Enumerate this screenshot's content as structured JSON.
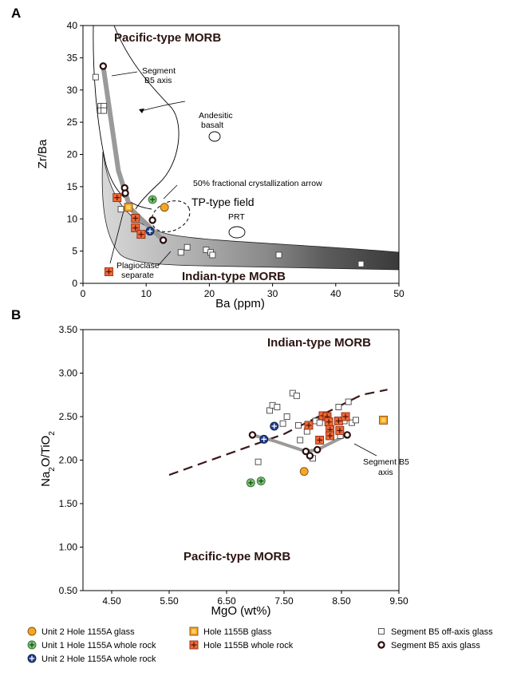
{
  "colors": {
    "segment_axis_line": "#9a9a9a",
    "fc_orange": "#f5a623",
    "fc_green": "#7cc576",
    "fc_blue": "#1f3f8f",
    "fc_red": "#ee6a37",
    "trend_dash": "#3a1a1a"
  },
  "legend": {
    "items": [
      {
        "symbol": "orange-circle",
        "label": "Unit 2 Hole 1155A glass"
      },
      {
        "symbol": "green-plus-circle",
        "label": "Unit 1 Hole 1155A whole rock"
      },
      {
        "symbol": "blue-plus-circle",
        "label": "Unit 2 Hole 1155A whole rock"
      },
      {
        "symbol": "orange-square",
        "label": "Hole 1155B glass"
      },
      {
        "symbol": "red-plus-square",
        "label": "Hole 1155B whole rock"
      },
      {
        "symbol": "open-square",
        "label": "Segment B5 off-axis glass"
      },
      {
        "symbol": "open-circle-thick",
        "label": "Segment B5 axis glass"
      }
    ]
  },
  "chart_data": [
    {
      "panel": "A",
      "type": "scatter",
      "xlabel": "Ba (ppm)",
      "ylabel": "Zr/Ba",
      "xlim": [
        0,
        50
      ],
      "ylim": [
        0,
        40
      ],
      "xticks": [
        "0",
        "10",
        "20",
        "30",
        "40",
        "50"
      ],
      "yticks": [
        "0",
        "5",
        "10",
        "15",
        "20",
        "25",
        "30",
        "35",
        "40"
      ],
      "region_labels": {
        "pacific": "Pacific-type MORB",
        "indian": "Indian-type MORB",
        "tp_field": "TP-type field",
        "prt": "PRT",
        "andesitic": [
          "Andesitic",
          "basalt"
        ],
        "fc_arrow": "50% fractional crystallization arrow",
        "segment_axis": [
          "Segment",
          "B5 axis"
        ],
        "plagioclase": [
          "Plagioclase",
          "separate"
        ]
      },
      "series": [
        {
          "name": "Segment B5 off-axis glass",
          "marker": "open-square",
          "points": [
            [
              2,
              32
            ],
            [
              2.8,
              27.5
            ],
            [
              3.3,
              27.5
            ],
            [
              2.8,
              26.8
            ],
            [
              3.3,
              26.8
            ],
            [
              6,
              11.5
            ],
            [
              15.5,
              4.8
            ],
            [
              16.5,
              5.6
            ],
            [
              19.5,
              5.2
            ],
            [
              20.2,
              4.8
            ],
            [
              20.5,
              4.4
            ],
            [
              31,
              4.4
            ],
            [
              44,
              3
            ]
          ]
        },
        {
          "name": "Segment B5 axis glass",
          "marker": "open-circle-thick",
          "points": [
            [
              3.2,
              33.7
            ],
            [
              6.6,
              14.8
            ],
            [
              6.7,
              14
            ],
            [
              11,
              9.8
            ],
            [
              12.7,
              6.7
            ]
          ]
        },
        {
          "name": "Unit 2 Hole 1155A glass",
          "marker": "orange-circle",
          "points": [
            [
              12.9,
              11.8
            ]
          ]
        },
        {
          "name": "Unit 1 Hole 1155A whole rock",
          "marker": "green-plus-circle",
          "points": [
            [
              11,
              13
            ]
          ]
        },
        {
          "name": "Unit 2 Hole 1155A whole rock",
          "marker": "blue-plus-circle",
          "points": [
            [
              10.6,
              8.1
            ]
          ]
        },
        {
          "name": "Hole 1155B glass",
          "marker": "orange-square",
          "points": [
            [
              7.2,
              11.8
            ]
          ]
        },
        {
          "name": "Hole 1155B whole rock",
          "marker": "red-plus-square",
          "points": [
            [
              5.4,
              13.3
            ],
            [
              8.3,
              10.1
            ],
            [
              8.3,
              8.6
            ],
            [
              9.2,
              7.6
            ],
            [
              4.1,
              1.8
            ]
          ]
        }
      ],
      "segment_axis_trend": [
        [
          3.2,
          33.7
        ],
        [
          5.6,
          17.5
        ],
        [
          7.5,
          11.6
        ],
        [
          12.7,
          6.7
        ]
      ]
    },
    {
      "panel": "B",
      "type": "scatter",
      "xlabel": "MgO (wt%)",
      "ylabel": "Na2O/TiO2",
      "xlim": [
        4.0,
        9.5
      ],
      "ylim": [
        0.5,
        3.5
      ],
      "xticks": [
        "4.50",
        "5.50",
        "6.50",
        "7.50",
        "8.50",
        "9.50"
      ],
      "yticks": [
        "0.50",
        "1.00",
        "1.50",
        "2.00",
        "2.50",
        "3.00",
        "3.50"
      ],
      "region_labels": {
        "indian": "Indian-type MORB",
        "pacific": "Pacific-type MORB",
        "segment_axis": [
          "Segment B5",
          "axis"
        ]
      },
      "series": [
        {
          "name": "Segment B5 off-axis glass",
          "marker": "open-square",
          "points": [
            [
              7.05,
              1.98
            ],
            [
              7.25,
              2.57
            ],
            [
              7.3,
              2.63
            ],
            [
              7.38,
              2.61
            ],
            [
              7.48,
              2.42
            ],
            [
              7.55,
              2.5
            ],
            [
              7.65,
              2.77
            ],
            [
              7.72,
              2.74
            ],
            [
              7.75,
              2.4
            ],
            [
              7.78,
              2.23
            ],
            [
              7.9,
              2.33
            ],
            [
              8.0,
              2.02
            ],
            [
              8.05,
              2.45
            ],
            [
              8.12,
              2.43
            ],
            [
              8.25,
              2.5
            ],
            [
              8.45,
              2.61
            ],
            [
              8.48,
              2.28
            ],
            [
              8.55,
              2.45
            ],
            [
              8.62,
              2.67
            ],
            [
              8.68,
              2.43
            ],
            [
              8.75,
              2.46
            ]
          ]
        },
        {
          "name": "Segment B5 axis glass",
          "marker": "open-circle-thick",
          "points": [
            [
              6.95,
              2.29
            ],
            [
              7.88,
              2.1
            ],
            [
              7.95,
              2.05
            ],
            [
              8.08,
              2.12
            ],
            [
              8.6,
              2.29
            ]
          ]
        },
        {
          "name": "Unit 2 Hole 1155A glass",
          "marker": "orange-circle",
          "points": [
            [
              7.85,
              1.87
            ]
          ]
        },
        {
          "name": "Unit 1 Hole 1155A whole rock",
          "marker": "green-plus-circle",
          "points": [
            [
              6.92,
              1.74
            ],
            [
              7.1,
              1.76
            ]
          ]
        },
        {
          "name": "Unit 2 Hole 1155A whole rock",
          "marker": "blue-plus-circle",
          "points": [
            [
              7.15,
              2.24
            ],
            [
              7.33,
              2.39
            ]
          ]
        },
        {
          "name": "Hole 1155B glass",
          "marker": "orange-square",
          "points": [
            [
              9.23,
              2.46
            ]
          ]
        },
        {
          "name": "Hole 1155B whole rock",
          "marker": "red-plus-square",
          "points": [
            [
              7.93,
              2.4
            ],
            [
              8.12,
              2.23
            ],
            [
              8.18,
              2.51
            ],
            [
              8.25,
              2.5
            ],
            [
              8.28,
              2.44
            ],
            [
              8.3,
              2.35
            ],
            [
              8.3,
              2.28
            ],
            [
              8.45,
              2.45
            ],
            [
              8.47,
              2.34
            ],
            [
              8.57,
              2.5
            ]
          ]
        }
      ],
      "segment_axis_trend": [
        [
          6.95,
          2.29
        ],
        [
          7.33,
          2.22
        ],
        [
          7.88,
          2.1
        ],
        [
          8.08,
          2.12
        ],
        [
          8.6,
          2.29
        ]
      ],
      "boundary_dashed": [
        [
          5.5,
          1.83
        ],
        [
          7.5,
          2.3
        ],
        [
          8.85,
          2.75
        ],
        [
          9.3,
          2.81
        ]
      ]
    }
  ]
}
